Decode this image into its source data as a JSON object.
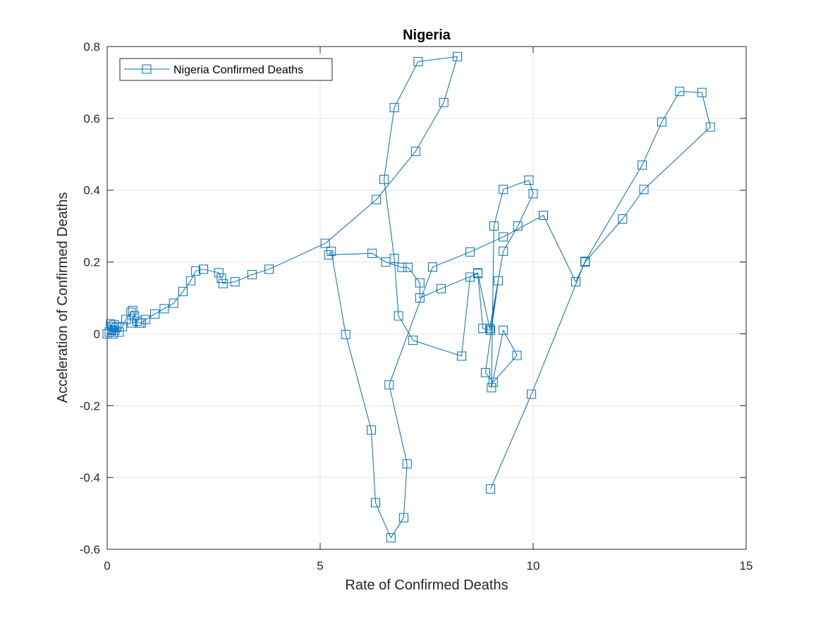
{
  "chart_data": {
    "type": "line",
    "title": "Nigeria",
    "xlabel": "Rate of Confirmed Deaths",
    "ylabel": "Acceleration of Confirmed Deaths",
    "xlim": [
      0,
      15
    ],
    "ylim": [
      -0.6,
      0.8
    ],
    "xticks": [
      "0",
      "5",
      "10",
      "15"
    ],
    "yticks": [
      "-0.6",
      "-0.4",
      "-0.2",
      "0",
      "0.2",
      "0.4",
      "0.6",
      "0.8"
    ],
    "grid": true,
    "legend_position": "top-left",
    "color": "#0072BD",
    "series": [
      {
        "name": "Nigeria Confirmed Deaths",
        "marker": "square",
        "x": [
          0.0,
          0.05,
          0.1,
          0.12,
          0.08,
          0.14,
          0.16,
          0.22,
          0.18,
          0.14,
          0.28,
          0.36,
          0.44,
          0.56,
          0.6,
          0.64,
          0.58,
          0.7,
          0.76,
          0.8,
          0.9,
          1.12,
          1.34,
          1.56,
          1.78,
          1.96,
          2.08,
          2.26,
          2.62,
          2.68,
          2.72,
          3.0,
          3.4,
          3.8,
          5.12,
          6.32,
          7.24,
          7.9,
          8.22,
          7.3,
          6.74,
          6.5,
          6.74,
          6.84,
          7.18,
          8.32,
          8.52,
          8.7,
          8.82,
          9.0,
          9.18,
          8.88,
          9.06,
          9.62,
          9.3,
          9.02,
          9.08,
          9.3,
          9.9,
          10.0,
          9.64,
          9.3,
          8.98,
          8.7,
          7.84,
          7.34,
          7.34,
          7.06,
          6.92,
          6.54,
          6.22,
          5.2,
          5.26,
          5.6,
          6.2,
          6.3,
          6.66,
          6.96,
          7.04,
          6.62,
          7.64,
          8.52,
          9.3,
          10.24,
          11.0,
          11.22,
          12.1,
          12.6,
          14.16,
          13.96,
          13.44,
          13.02,
          12.56,
          11.22,
          9.96,
          9.0
        ],
        "y": [
          0.0,
          0.005,
          0.01,
          0.02,
          0.028,
          0.0,
          0.025,
          0.018,
          0.01,
          0.005,
          0.005,
          0.02,
          0.04,
          0.06,
          0.065,
          0.05,
          0.03,
          0.035,
          0.03,
          0.03,
          0.04,
          0.055,
          0.07,
          0.085,
          0.118,
          0.148,
          0.175,
          0.18,
          0.17,
          0.155,
          0.14,
          0.145,
          0.165,
          0.18,
          0.252,
          0.374,
          0.508,
          0.644,
          0.772,
          0.758,
          0.63,
          0.43,
          0.21,
          0.05,
          -0.018,
          -0.062,
          0.158,
          0.17,
          0.015,
          0.01,
          0.148,
          -0.108,
          -0.135,
          -0.06,
          0.01,
          -0.15,
          0.3,
          0.402,
          0.428,
          0.39,
          0.3,
          0.23,
          0.015,
          0.168,
          0.126,
          0.1,
          0.142,
          0.185,
          0.185,
          0.2,
          0.224,
          0.22,
          0.23,
          -0.002,
          -0.268,
          -0.47,
          -0.568,
          -0.512,
          -0.362,
          -0.142,
          0.186,
          0.228,
          0.27,
          0.33,
          0.145,
          0.2,
          0.32,
          0.402,
          0.576,
          0.672,
          0.675,
          0.59,
          0.47,
          0.202,
          -0.168,
          -0.432
        ]
      }
    ]
  }
}
